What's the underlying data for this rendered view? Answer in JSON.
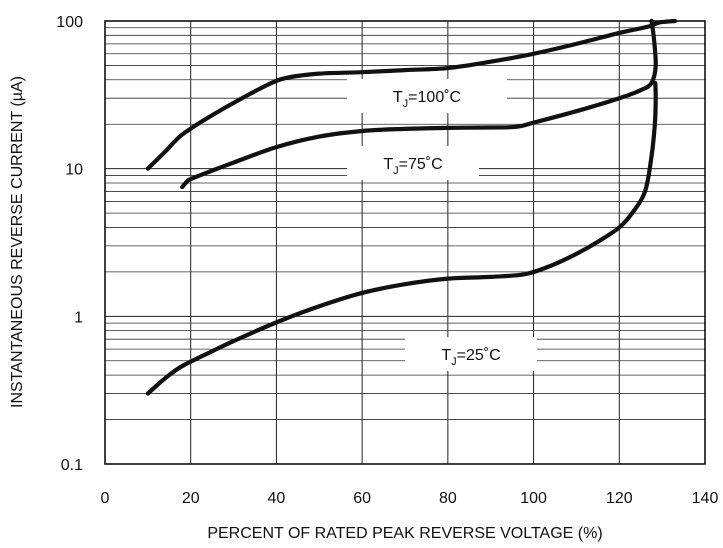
{
  "chart_data": {
    "type": "line",
    "title": "",
    "xlabel": "PERCENT OF RATED PEAK REVERSE VOLTAGE (%)",
    "ylabel": "INSTANTANEOUS REVERSE CURRENT (µA)",
    "xlim": [
      0,
      140
    ],
    "ylim": [
      0.1,
      100
    ],
    "yscale": "log",
    "grid": true,
    "x_ticks": [
      "0",
      "20",
      "40",
      "60",
      "80",
      "100",
      "120",
      "140"
    ],
    "y_ticks": [
      "0.1",
      "1",
      "10",
      "100"
    ],
    "series": [
      {
        "name_main": "T",
        "name_sub": "J",
        "name_rest": "=100˚C",
        "x": [
          10,
          14,
          18,
          25,
          32,
          38,
          42,
          50,
          60,
          70,
          80,
          90,
          100,
          110,
          120,
          127,
          128.5,
          129.5,
          131,
          133
        ],
        "y": [
          10,
          13,
          17,
          23,
          30,
          37,
          41,
          44,
          45,
          46.5,
          48,
          53,
          60,
          70,
          83,
          92,
          96,
          98,
          99,
          100
        ]
      },
      {
        "name_main": "T",
        "name_sub": "J",
        "name_rest": "=75˚C",
        "x": [
          18,
          19,
          20,
          25,
          30,
          40,
          50,
          60,
          70,
          80,
          90,
          96,
          100,
          110,
          120,
          125,
          127.5,
          128.5,
          128,
          127.5
        ],
        "y": [
          7.5,
          8.1,
          8.5,
          9.7,
          11,
          14,
          16.5,
          18,
          18.6,
          18.9,
          19,
          19.2,
          20.5,
          24.5,
          30,
          34,
          38,
          50,
          80,
          100
        ]
      },
      {
        "name_main": "T",
        "name_sub": "J",
        "name_rest": "=25˚C",
        "x": [
          10,
          14,
          18,
          25,
          30,
          40,
          50,
          60,
          70,
          80,
          90,
          98,
          104,
          110,
          115,
          120,
          123,
          126,
          127.5,
          128.3,
          128.5,
          128.4
        ],
        "y": [
          0.3,
          0.38,
          0.46,
          0.58,
          0.68,
          0.91,
          1.17,
          1.44,
          1.65,
          1.8,
          1.85,
          1.93,
          2.2,
          2.65,
          3.2,
          4.0,
          5.0,
          7.0,
          12,
          20,
          30,
          38
        ]
      }
    ]
  }
}
